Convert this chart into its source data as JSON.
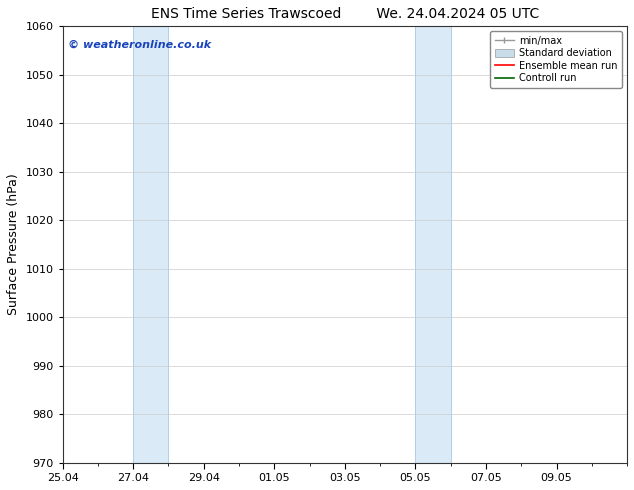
{
  "title_left": "ENS Time Series Trawscoed",
  "title_right": "We. 24.04.2024 05 UTC",
  "ylabel": "Surface Pressure (hPa)",
  "ylim": [
    970,
    1060
  ],
  "yticks": [
    970,
    980,
    990,
    1000,
    1010,
    1020,
    1030,
    1040,
    1050,
    1060
  ],
  "xtick_labels": [
    "25.04",
    "27.04",
    "29.04",
    "01.05",
    "03.05",
    "05.05",
    "07.05",
    "09.05"
  ],
  "shaded_regions": [
    {
      "label": "27.04",
      "x_start": 2,
      "x_end": 3,
      "color": "#daeaf7"
    },
    {
      "label": "05.05",
      "x_start": 10,
      "x_end": 11,
      "color": "#daeaf7"
    }
  ],
  "shaded_border_color": "#b0cfe8",
  "watermark_text": "© weatheronline.co.uk",
  "watermark_color": "#1a44bb",
  "background_color": "#ffffff",
  "plot_bg_color": "#ffffff",
  "legend_items": [
    {
      "label": "min/max",
      "color": "#aaaaaa",
      "style": "line_with_caps"
    },
    {
      "label": "Standard deviation",
      "color": "#c8dcea",
      "style": "filled"
    },
    {
      "label": "Ensemble mean run",
      "color": "#ff0000",
      "style": "line"
    },
    {
      "label": "Controll run",
      "color": "#006600",
      "style": "line"
    }
  ],
  "x_min": 0,
  "x_max": 16,
  "title_fontsize": 10,
  "axis_label_fontsize": 9,
  "tick_fontsize": 8,
  "legend_fontsize": 7,
  "grid_color": "#cccccc",
  "spine_color": "#333333"
}
